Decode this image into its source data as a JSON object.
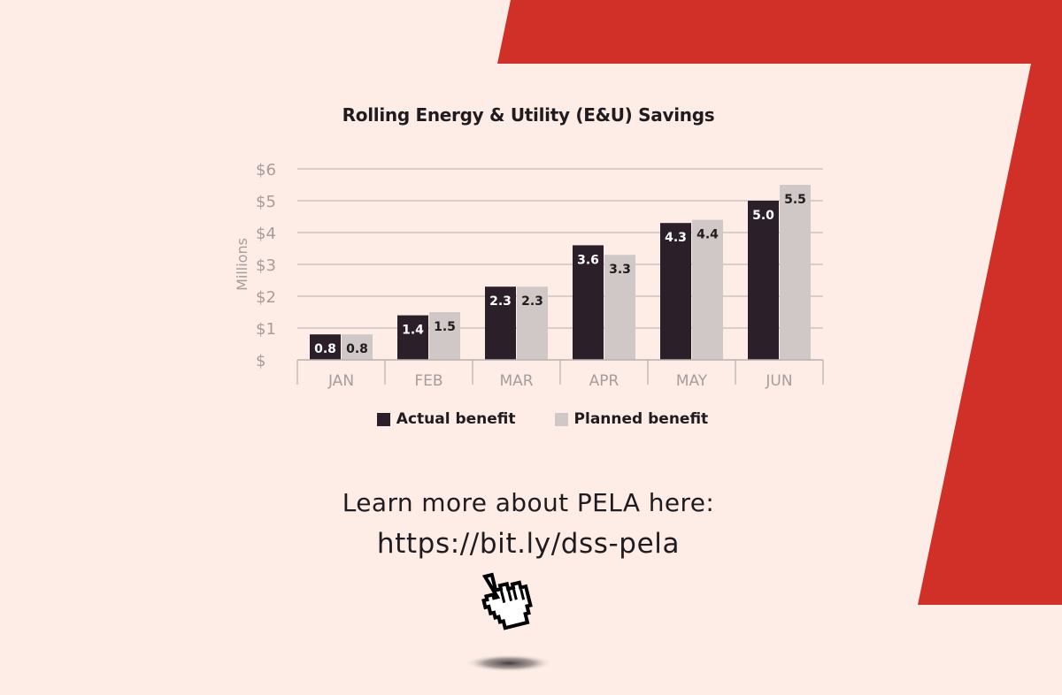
{
  "theme": {
    "background": "#fdede6",
    "accent": "#d13029",
    "actual_color": "#2b1f29",
    "planned_color": "#d0c8c6",
    "axis_text_color": "#a69c9b",
    "grid_color": "#b9b0ae",
    "text_color": "#201b1e"
  },
  "chart_data": {
    "type": "bar",
    "title": "Rolling Energy & Utility (E&U) Savings",
    "xlabel": "",
    "ylabel": "Millions",
    "categories": [
      "JAN",
      "FEB",
      "MAR",
      "APR",
      "MAY",
      "JUN"
    ],
    "series": [
      {
        "name": "Actual benefit",
        "values": [
          0.8,
          1.4,
          2.3,
          3.6,
          4.3,
          5.0
        ],
        "labels": [
          "0.8",
          "1.4",
          "2.3",
          "3.6",
          "4.3",
          "5.0"
        ]
      },
      {
        "name": "Planned benefit",
        "values": [
          0.8,
          1.5,
          2.3,
          3.3,
          4.4,
          5.5
        ],
        "labels": [
          "0.8",
          "1.5",
          "2.3",
          "3.3",
          "4.4",
          "5.5"
        ]
      }
    ],
    "ylim": [
      0,
      6
    ],
    "yticks": [
      0,
      1,
      2,
      3,
      4,
      5,
      6
    ],
    "yticklabels": [
      "$",
      "$1",
      "$2",
      "$3",
      "$4",
      "$5",
      "$6"
    ],
    "grid": true,
    "legend_position": "bottom"
  },
  "cta": {
    "text": "Learn more about PELA here:",
    "link": "https://bit.ly/dss-pela"
  },
  "cursor": {
    "icon": "pointer-hand-icon"
  }
}
